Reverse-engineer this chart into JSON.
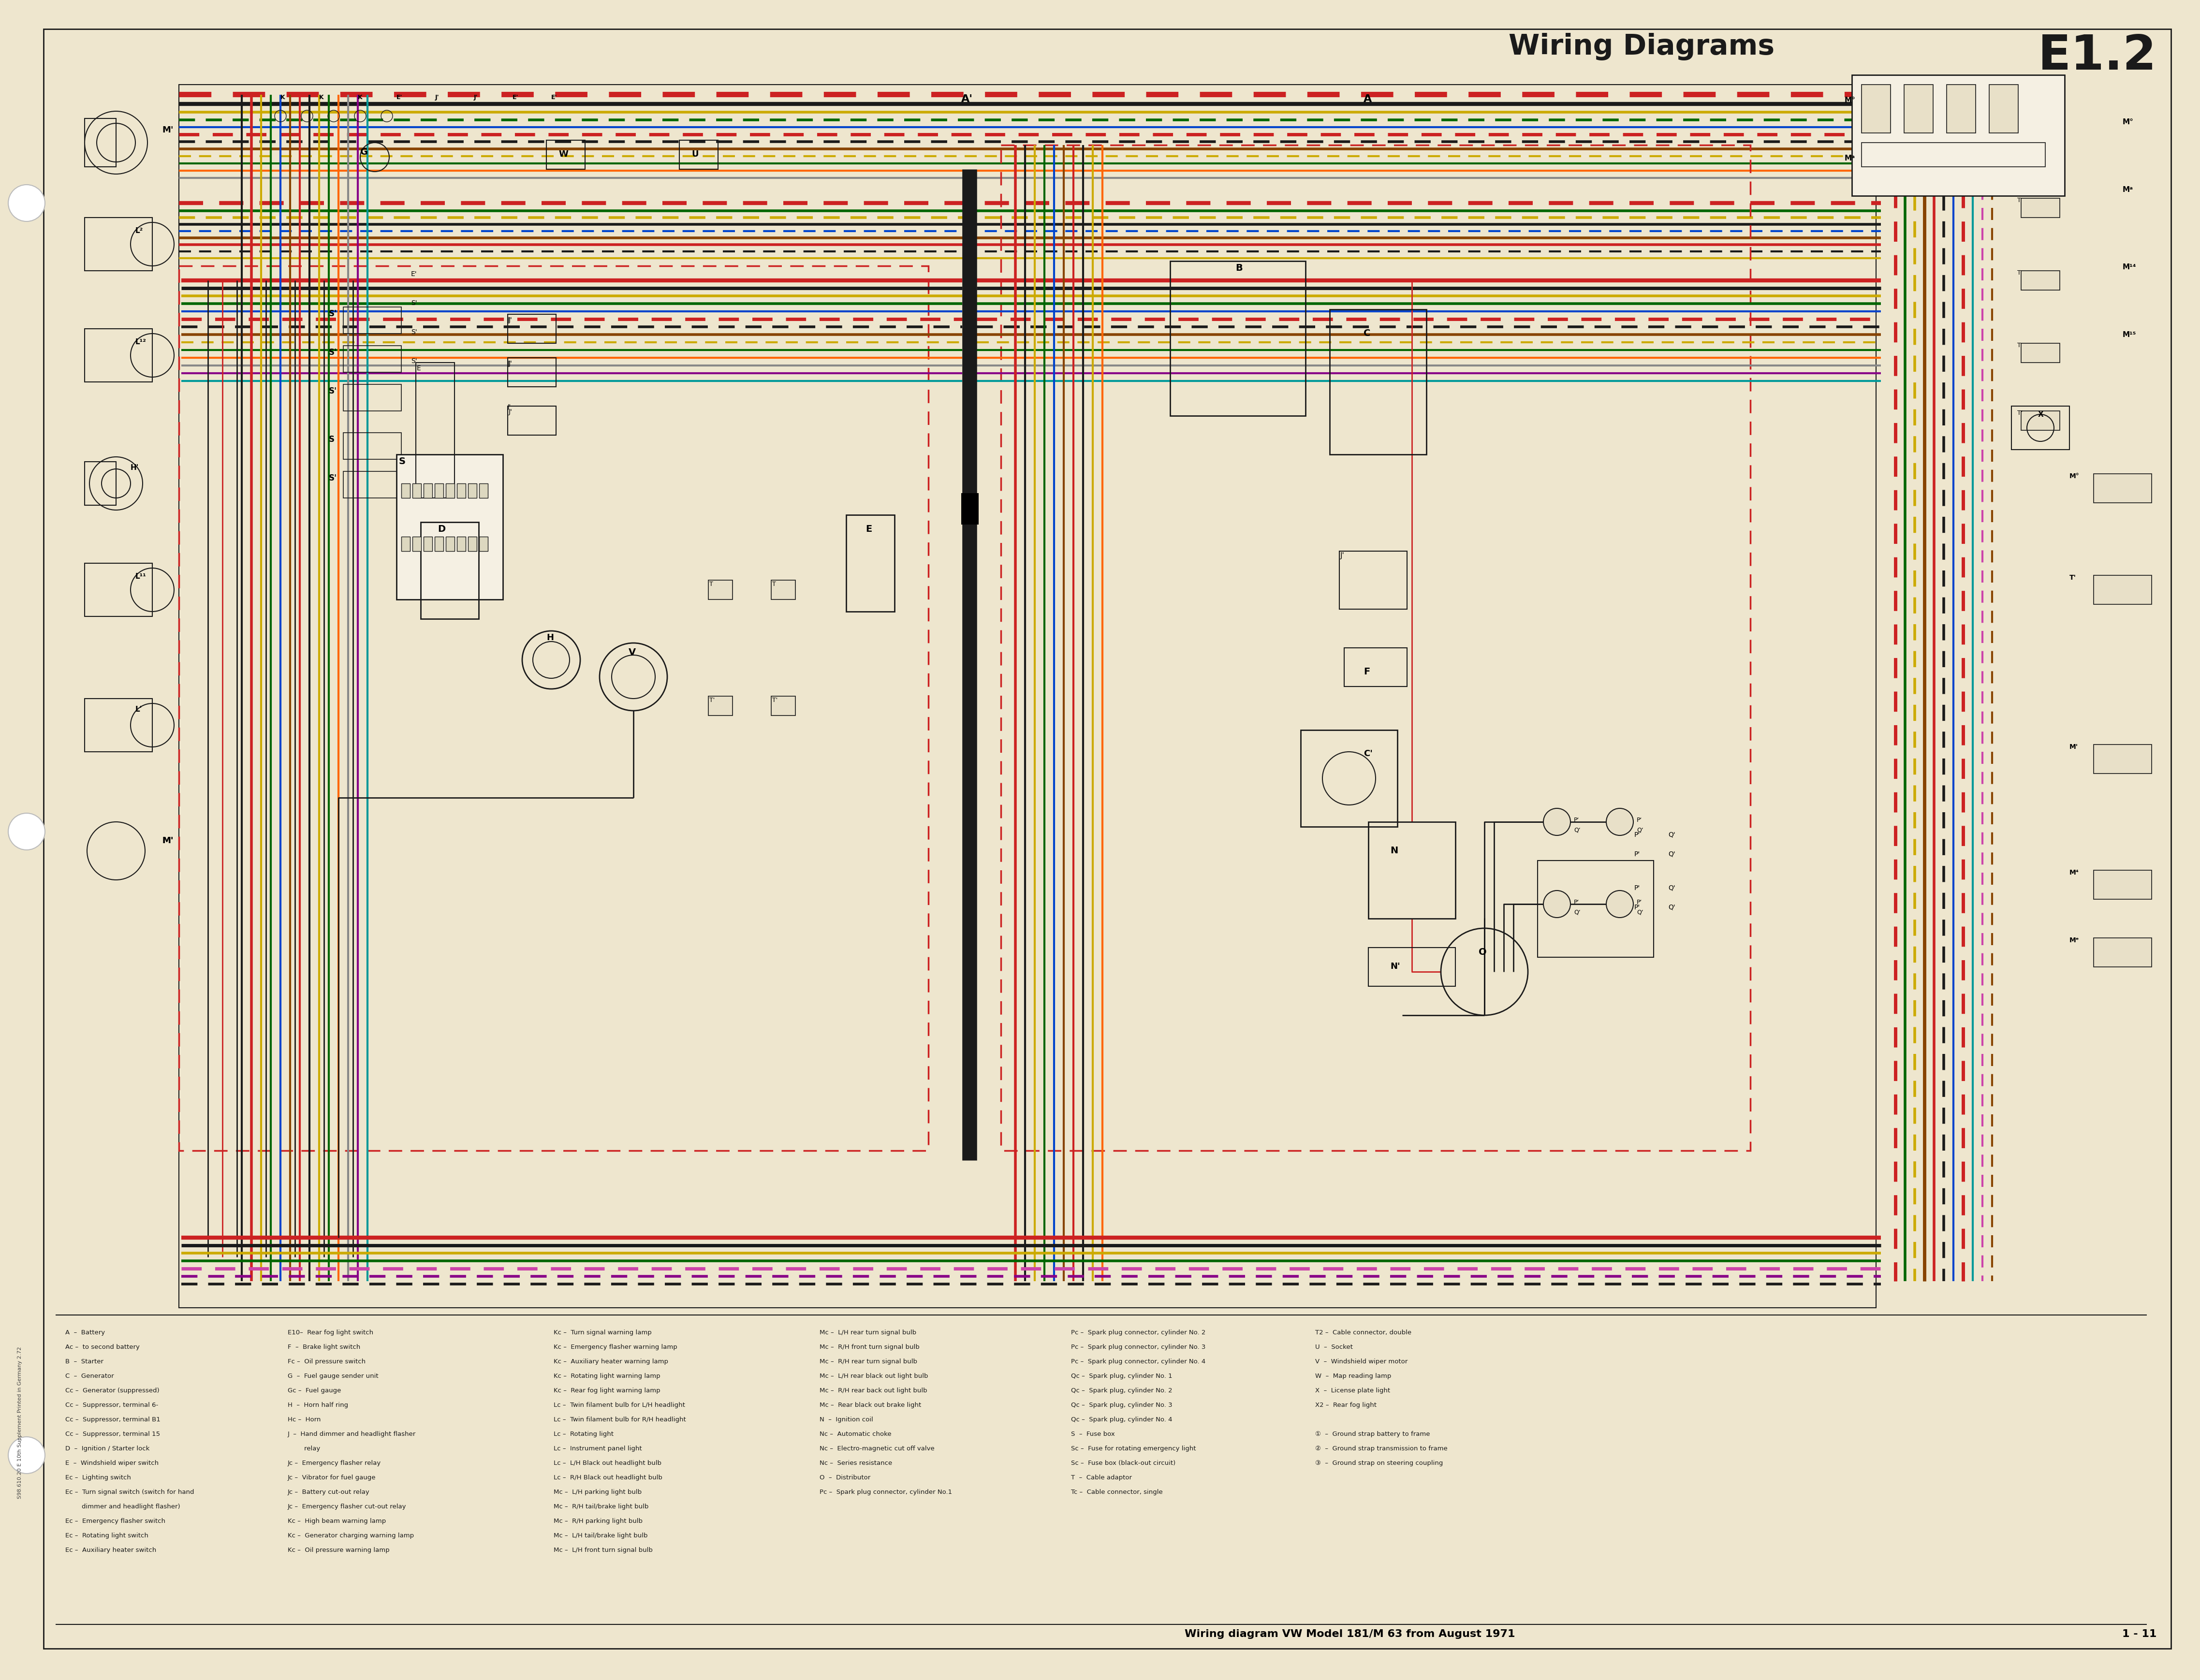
{
  "title": "Wiring Diagrams",
  "page_id": "E1.2",
  "subtitle": "Wiring diagram VW Model 181/M 63 from August 1971",
  "page_num": "1 - 11",
  "bg_color": "#EEE6CE",
  "print_info": "S98.610.20 E 10th Supplement Printed in Germany 2.72",
  "legend_col1": [
    "A  –  Battery",
    "Ac –  to second battery",
    "B  –  Starter",
    "C  –  Generator",
    "Cc –  Generator (suppressed)",
    "Cc –  Suppressor, terminal 6-",
    "Cc –  Suppressor, terminal B1",
    "Cc –  Suppressor, terminal 15",
    "D  –  Ignition / Starter lock",
    "E  –  Windshield wiper switch",
    "Ec –  Lighting switch",
    "Ec –  Turn signal switch (switch for hand",
    "        dimmer and headlight flasher)",
    "Ec –  Emergency flasher switch",
    "Ec –  Rotating light switch",
    "Ec –  Auxiliary heater switch"
  ],
  "legend_col2": [
    "E10–  Rear fog light switch",
    "F  –  Brake light switch",
    "Fc –  Oil pressure switch",
    "G  –  Fuel gauge sender unit",
    "Gc –  Fuel gauge",
    "H  –  Horn half ring",
    "Hc –  Horn",
    "J  –  Hand dimmer and headlight flasher",
    "        relay",
    "Jc –  Emergency flasher relay",
    "Jc –  Vibrator for fuel gauge",
    "Jc –  Battery cut-out relay",
    "Jc –  Emergency flasher cut-out relay",
    "Kc –  High beam warning lamp",
    "Kc –  Generator charging warning lamp",
    "Kc –  Oil pressure warning lamp"
  ],
  "legend_col3": [
    "Kc –  Turn signal warning lamp",
    "Kc –  Emergency flasher warning lamp",
    "Kc –  Auxiliary heater warning lamp",
    "Kc –  Rotating light warning lamp",
    "Kc –  Rear fog light warning lamp",
    "Lc –  Twin filament bulb for L/H headlight",
    "Lc –  Twin filament bulb for R/H headlight",
    "Lc –  Rotating light",
    "Lc –  Instrument panel light",
    "Lc –  L/H Black out headlight bulb",
    "Lc –  R/H Black out headlight bulb",
    "Mc –  L/H parking light bulb",
    "Mc –  R/H tail/brake light bulb",
    "Mc –  R/H parking light bulb",
    "Mc –  L/H tail/brake light bulb",
    "Mc –  L/H front turn signal bulb"
  ],
  "legend_col4": [
    "Mc –  L/H rear turn signal bulb",
    "Mc –  R/H front turn signal bulb",
    "Mc –  R/H rear turn signal bulb",
    "Mc –  L/H rear black out light bulb",
    "Mc –  R/H rear back out light bulb",
    "Mc –  Rear black out brake light",
    "N  –  Ignition coil",
    "Nc –  Automatic choke",
    "Nc –  Electro-magnetic cut off valve",
    "Nc –  Series resistance",
    "O  –  Distributor",
    "Pc –  Spark plug connector, cylinder No.1"
  ],
  "legend_col5": [
    "Pc –  Spark plug connector, cylinder No. 2",
    "Pc –  Spark plug connector, cylinder No. 3",
    "Pc –  Spark plug connector, cylinder No. 4",
    "Qc –  Spark plug, cylinder No. 1",
    "Qc –  Spark plug, cylinder No. 2",
    "Qc –  Spark plug, cylinder No. 3",
    "Qc –  Spark plug, cylinder No. 4",
    "S  –  Fuse box",
    "Sc –  Fuse for rotating emergency light",
    "Sc –  Fuse box (black-out circuit)",
    "T  –  Cable adaptor",
    "Tc –  Cable connector, single"
  ],
  "legend_col6": [
    "T2 –  Cable connector, double",
    "U  –  Socket",
    "V  –  Windshield wiper motor",
    "W  –  Map reading lamp",
    "X  –  License plate light",
    "X2 –  Rear fog light",
    "",
    "①  –  Ground strap battery to frame",
    "②  –  Ground strap transmission to frame",
    "③  –  Ground strap on steering coupling"
  ],
  "wire_colors": {
    "red": "#CC2222",
    "black": "#1a1a1a",
    "yellow": "#CCAA00",
    "green": "#006600",
    "blue": "#0044CC",
    "brown": "#884400",
    "white": "#DDDDDD",
    "orange": "#FF6600",
    "purple": "#880088",
    "cyan": "#009999",
    "grey": "#888888",
    "pink": "#CC44AA"
  }
}
